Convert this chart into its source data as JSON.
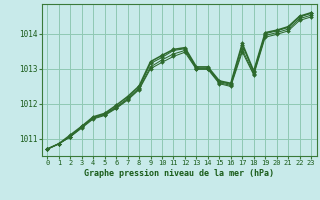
{
  "bg_color": "#c8eaea",
  "grid_color": "#90c8b4",
  "line_color": "#2d6a2d",
  "marker_color": "#2d6a2d",
  "title": "Graphe pression niveau de la mer (hPa)",
  "title_color": "#1a5c1a",
  "xlim": [
    -0.5,
    23.5
  ],
  "ylim": [
    1010.5,
    1014.85
  ],
  "yticks": [
    1011,
    1012,
    1013,
    1014
  ],
  "xticks": [
    0,
    1,
    2,
    3,
    4,
    5,
    6,
    7,
    8,
    9,
    10,
    11,
    12,
    13,
    14,
    15,
    16,
    17,
    18,
    19,
    20,
    21,
    22,
    23
  ],
  "series_a_y": [
    1010.7,
    1010.85,
    1011.05,
    1011.35,
    1011.6,
    1011.7,
    1011.9,
    1012.15,
    1012.45,
    1013.15,
    1013.32,
    1013.52,
    1013.57,
    1013.02,
    1013.02,
    1012.63,
    1012.55,
    1013.68,
    1012.9,
    1014.0,
    1014.08,
    1014.18,
    1014.48,
    1014.58
  ],
  "series_b_y": [
    1010.7,
    1010.85,
    1011.05,
    1011.32,
    1011.58,
    1011.68,
    1011.88,
    1012.12,
    1012.42,
    1013.05,
    1013.25,
    1013.42,
    1013.52,
    1013.0,
    1013.0,
    1012.6,
    1012.52,
    1013.55,
    1012.85,
    1013.95,
    1014.03,
    1014.13,
    1014.43,
    1014.53
  ],
  "series_c_y": [
    1010.7,
    1010.85,
    1011.05,
    1011.3,
    1011.56,
    1011.66,
    1011.86,
    1012.1,
    1012.4,
    1013.0,
    1013.18,
    1013.35,
    1013.47,
    1012.98,
    1012.98,
    1012.57,
    1012.49,
    1013.48,
    1012.82,
    1013.9,
    1013.98,
    1014.08,
    1014.38,
    1014.48
  ],
  "series_main_y": [
    1010.7,
    1010.85,
    1011.1,
    1011.35,
    1011.62,
    1011.72,
    1011.95,
    1012.2,
    1012.5,
    1013.2,
    1013.38,
    1013.55,
    1013.6,
    1013.05,
    1013.05,
    1012.65,
    1012.58,
    1013.72,
    1012.93,
    1014.03,
    1014.1,
    1014.2,
    1014.5,
    1014.6
  ]
}
